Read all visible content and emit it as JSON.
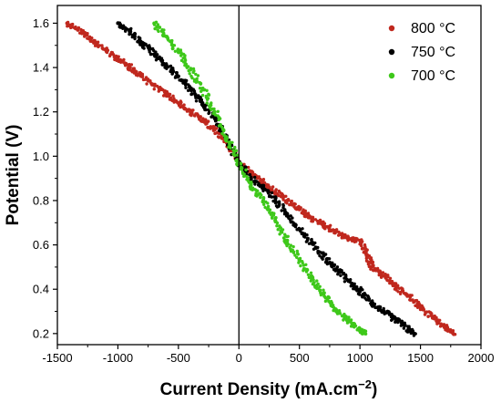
{
  "chart_data": {
    "type": "scatter",
    "title": "",
    "xlabel": "Current Density (mA.cm",
    "xlabel_superscript": "−2",
    "xlabel_suffix": ")",
    "ylabel": "Potential (V)",
    "xlim": [
      -1500,
      2000
    ],
    "ylim": [
      0.15,
      1.68
    ],
    "x_ticks": [
      -1500,
      -1000,
      -500,
      0,
      500,
      1000,
      1500,
      2000
    ],
    "x_tick_labels": [
      "-1500",
      "-1000",
      "-500",
      "0",
      "500",
      "1000",
      "1500",
      "2000"
    ],
    "y_ticks": [
      0.2,
      0.4,
      0.6,
      0.8,
      1.0,
      1.2,
      1.4,
      1.6
    ],
    "y_tick_labels": [
      "0.2",
      "0.4",
      "0.6",
      "0.8",
      "1.0",
      "1.2",
      "1.4",
      "1.6"
    ],
    "grid": false,
    "zero_line_x": 0,
    "legend_position": "top-right",
    "series": [
      {
        "name": "800 °C",
        "color": "#c0281e",
        "points": [
          [
            -1420,
            1.6
          ],
          [
            -1300,
            1.56
          ],
          [
            -1200,
            1.52
          ],
          [
            -1100,
            1.48
          ],
          [
            -1000,
            1.44
          ],
          [
            -900,
            1.4
          ],
          [
            -800,
            1.36
          ],
          [
            -700,
            1.32
          ],
          [
            -600,
            1.28
          ],
          [
            -500,
            1.24
          ],
          [
            -400,
            1.2
          ],
          [
            -300,
            1.16
          ],
          [
            -200,
            1.12
          ],
          [
            -100,
            1.06
          ],
          [
            0,
            0.97
          ],
          [
            100,
            0.92
          ],
          [
            200,
            0.88
          ],
          [
            300,
            0.84
          ],
          [
            400,
            0.8
          ],
          [
            500,
            0.76
          ],
          [
            600,
            0.72
          ],
          [
            700,
            0.69
          ],
          [
            800,
            0.66
          ],
          [
            900,
            0.63
          ],
          [
            1000,
            0.62
          ],
          [
            1050,
            0.56
          ],
          [
            1100,
            0.5
          ],
          [
            1200,
            0.46
          ],
          [
            1300,
            0.41
          ],
          [
            1400,
            0.37
          ],
          [
            1500,
            0.32
          ],
          [
            1600,
            0.27
          ],
          [
            1700,
            0.23
          ],
          [
            1770,
            0.2
          ]
        ]
      },
      {
        "name": "750 °C",
        "color": "#000000",
        "points": [
          [
            -1000,
            1.6
          ],
          [
            -900,
            1.56
          ],
          [
            -800,
            1.51
          ],
          [
            -700,
            1.46
          ],
          [
            -600,
            1.41
          ],
          [
            -500,
            1.36
          ],
          [
            -400,
            1.3
          ],
          [
            -300,
            1.24
          ],
          [
            -200,
            1.17
          ],
          [
            -100,
            1.08
          ],
          [
            0,
            0.97
          ],
          [
            100,
            0.9
          ],
          [
            200,
            0.86
          ],
          [
            300,
            0.8
          ],
          [
            400,
            0.74
          ],
          [
            500,
            0.67
          ],
          [
            600,
            0.61
          ],
          [
            700,
            0.55
          ],
          [
            800,
            0.49
          ],
          [
            900,
            0.44
          ],
          [
            1000,
            0.39
          ],
          [
            1100,
            0.34
          ],
          [
            1200,
            0.3
          ],
          [
            1300,
            0.26
          ],
          [
            1400,
            0.22
          ],
          [
            1450,
            0.2
          ]
        ]
      },
      {
        "name": "700 °C",
        "color": "#3ec81a",
        "points": [
          [
            -700,
            1.6
          ],
          [
            -600,
            1.54
          ],
          [
            -500,
            1.47
          ],
          [
            -400,
            1.39
          ],
          [
            -300,
            1.3
          ],
          [
            -200,
            1.2
          ],
          [
            -100,
            1.08
          ],
          [
            0,
            0.97
          ],
          [
            100,
            0.87
          ],
          [
            200,
            0.8
          ],
          [
            300,
            0.71
          ],
          [
            400,
            0.62
          ],
          [
            500,
            0.53
          ],
          [
            600,
            0.45
          ],
          [
            700,
            0.38
          ],
          [
            800,
            0.31
          ],
          [
            900,
            0.26
          ],
          [
            1000,
            0.22
          ],
          [
            1040,
            0.2
          ]
        ]
      }
    ]
  }
}
